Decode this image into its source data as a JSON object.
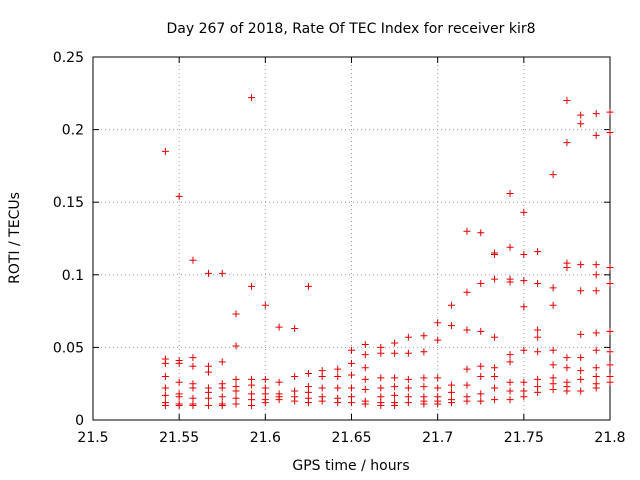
{
  "chart_data": {
    "type": "scatter",
    "title": "Day 267 of 2018, Rate Of TEC Index for receiver kir8",
    "xlabel": "GPS time / hours",
    "ylabel": "ROTI / TECUs",
    "xlim": [
      21.5,
      21.8
    ],
    "ylim": [
      0,
      0.25
    ],
    "xticks": [
      "21.5",
      "21.55",
      "21.6",
      "21.65",
      "21.7",
      "21.75",
      "21.8"
    ],
    "yticks": [
      "0",
      "0.05",
      "0.1",
      "0.15",
      "0.2",
      "0.25"
    ],
    "grid": true,
    "marker": "+",
    "color": "#e00000",
    "series": [
      {
        "name": "ROTI",
        "points": [
          [
            21.542,
            0.185
          ],
          [
            21.542,
            0.042
          ],
          [
            21.542,
            0.039
          ],
          [
            21.542,
            0.03
          ],
          [
            21.542,
            0.022
          ],
          [
            21.542,
            0.017
          ],
          [
            21.542,
            0.012
          ],
          [
            21.542,
            0.01
          ],
          [
            21.55,
            0.154
          ],
          [
            21.55,
            0.041
          ],
          [
            21.55,
            0.039
          ],
          [
            21.55,
            0.026
          ],
          [
            21.55,
            0.018
          ],
          [
            21.55,
            0.016
          ],
          [
            21.55,
            0.011
          ],
          [
            21.55,
            0.01
          ],
          [
            21.558,
            0.11
          ],
          [
            21.558,
            0.043
          ],
          [
            21.558,
            0.037
          ],
          [
            21.558,
            0.025
          ],
          [
            21.558,
            0.022
          ],
          [
            21.558,
            0.015
          ],
          [
            21.558,
            0.011
          ],
          [
            21.558,
            0.01
          ],
          [
            21.567,
            0.101
          ],
          [
            21.567,
            0.037
          ],
          [
            21.567,
            0.033
          ],
          [
            21.567,
            0.022
          ],
          [
            21.567,
            0.019
          ],
          [
            21.567,
            0.015
          ],
          [
            21.567,
            0.01
          ],
          [
            21.575,
            0.101
          ],
          [
            21.575,
            0.04
          ],
          [
            21.575,
            0.025
          ],
          [
            21.575,
            0.022
          ],
          [
            21.575,
            0.016
          ],
          [
            21.575,
            0.011
          ],
          [
            21.575,
            0.01
          ],
          [
            21.583,
            0.073
          ],
          [
            21.583,
            0.051
          ],
          [
            21.583,
            0.028
          ],
          [
            21.583,
            0.023
          ],
          [
            21.583,
            0.02
          ],
          [
            21.583,
            0.015
          ],
          [
            21.583,
            0.011
          ],
          [
            21.592,
            0.222
          ],
          [
            21.592,
            0.092
          ],
          [
            21.592,
            0.028
          ],
          [
            21.592,
            0.024
          ],
          [
            21.592,
            0.018
          ],
          [
            21.592,
            0.014
          ],
          [
            21.592,
            0.01
          ],
          [
            21.6,
            0.079
          ],
          [
            21.6,
            0.028
          ],
          [
            21.6,
            0.022
          ],
          [
            21.6,
            0.018
          ],
          [
            21.6,
            0.014
          ],
          [
            21.6,
            0.012
          ],
          [
            21.608,
            0.064
          ],
          [
            21.608,
            0.026
          ],
          [
            21.608,
            0.018
          ],
          [
            21.608,
            0.016
          ],
          [
            21.608,
            0.014
          ],
          [
            21.617,
            0.063
          ],
          [
            21.617,
            0.03
          ],
          [
            21.617,
            0.02
          ],
          [
            21.617,
            0.016
          ],
          [
            21.617,
            0.013
          ],
          [
            21.625,
            0.092
          ],
          [
            21.625,
            0.032
          ],
          [
            21.625,
            0.023
          ],
          [
            21.625,
            0.019
          ],
          [
            21.625,
            0.015
          ],
          [
            21.625,
            0.012
          ],
          [
            21.633,
            0.034
          ],
          [
            21.633,
            0.03
          ],
          [
            21.633,
            0.022
          ],
          [
            21.633,
            0.016
          ],
          [
            21.633,
            0.013
          ],
          [
            21.642,
            0.035
          ],
          [
            21.642,
            0.03
          ],
          [
            21.642,
            0.022
          ],
          [
            21.642,
            0.015
          ],
          [
            21.642,
            0.012
          ],
          [
            21.65,
            0.048
          ],
          [
            21.65,
            0.039
          ],
          [
            21.65,
            0.031
          ],
          [
            21.65,
            0.022
          ],
          [
            21.65,
            0.016
          ],
          [
            21.65,
            0.012
          ],
          [
            21.658,
            0.052
          ],
          [
            21.658,
            0.045
          ],
          [
            21.658,
            0.036
          ],
          [
            21.658,
            0.028
          ],
          [
            21.658,
            0.021
          ],
          [
            21.658,
            0.013
          ],
          [
            21.658,
            0.011
          ],
          [
            21.667,
            0.05
          ],
          [
            21.667,
            0.046
          ],
          [
            21.667,
            0.029
          ],
          [
            21.667,
            0.022
          ],
          [
            21.667,
            0.016
          ],
          [
            21.667,
            0.012
          ],
          [
            21.667,
            0.01
          ],
          [
            21.675,
            0.053
          ],
          [
            21.675,
            0.046
          ],
          [
            21.675,
            0.029
          ],
          [
            21.675,
            0.023
          ],
          [
            21.675,
            0.017
          ],
          [
            21.675,
            0.012
          ],
          [
            21.675,
            0.01
          ],
          [
            21.683,
            0.057
          ],
          [
            21.683,
            0.046
          ],
          [
            21.683,
            0.028
          ],
          [
            21.683,
            0.022
          ],
          [
            21.683,
            0.016
          ],
          [
            21.683,
            0.012
          ],
          [
            21.692,
            0.058
          ],
          [
            21.692,
            0.047
          ],
          [
            21.692,
            0.029
          ],
          [
            21.692,
            0.023
          ],
          [
            21.692,
            0.016
          ],
          [
            21.692,
            0.013
          ],
          [
            21.692,
            0.011
          ],
          [
            21.7,
            0.067
          ],
          [
            21.7,
            0.055
          ],
          [
            21.7,
            0.029
          ],
          [
            21.7,
            0.022
          ],
          [
            21.7,
            0.016
          ],
          [
            21.7,
            0.013
          ],
          [
            21.7,
            0.011
          ],
          [
            21.708,
            0.079
          ],
          [
            21.708,
            0.065
          ],
          [
            21.708,
            0.024
          ],
          [
            21.708,
            0.019
          ],
          [
            21.708,
            0.014
          ],
          [
            21.708,
            0.012
          ],
          [
            21.717,
            0.13
          ],
          [
            21.717,
            0.088
          ],
          [
            21.717,
            0.062
          ],
          [
            21.717,
            0.035
          ],
          [
            21.717,
            0.024
          ],
          [
            21.717,
            0.016
          ],
          [
            21.717,
            0.013
          ],
          [
            21.725,
            0.129
          ],
          [
            21.725,
            0.094
          ],
          [
            21.725,
            0.061
          ],
          [
            21.725,
            0.037
          ],
          [
            21.725,
            0.03
          ],
          [
            21.725,
            0.018
          ],
          [
            21.725,
            0.013
          ],
          [
            21.733,
            0.115
          ],
          [
            21.733,
            0.114
          ],
          [
            21.733,
            0.097
          ],
          [
            21.733,
            0.057
          ],
          [
            21.733,
            0.036
          ],
          [
            21.733,
            0.03
          ],
          [
            21.733,
            0.022
          ],
          [
            21.733,
            0.014
          ],
          [
            21.742,
            0.156
          ],
          [
            21.742,
            0.119
          ],
          [
            21.742,
            0.097
          ],
          [
            21.742,
            0.095
          ],
          [
            21.742,
            0.045
          ],
          [
            21.742,
            0.04
          ],
          [
            21.742,
            0.026
          ],
          [
            21.742,
            0.02
          ],
          [
            21.742,
            0.014
          ],
          [
            21.75,
            0.143
          ],
          [
            21.75,
            0.114
          ],
          [
            21.75,
            0.096
          ],
          [
            21.75,
            0.078
          ],
          [
            21.75,
            0.048
          ],
          [
            21.75,
            0.026
          ],
          [
            21.75,
            0.02
          ],
          [
            21.75,
            0.016
          ],
          [
            21.758,
            0.116
          ],
          [
            21.758,
            0.094
          ],
          [
            21.758,
            0.062
          ],
          [
            21.758,
            0.057
          ],
          [
            21.758,
            0.047
          ],
          [
            21.758,
            0.028
          ],
          [
            21.758,
            0.023
          ],
          [
            21.758,
            0.019
          ],
          [
            21.767,
            0.169
          ],
          [
            21.767,
            0.091
          ],
          [
            21.767,
            0.079
          ],
          [
            21.767,
            0.048
          ],
          [
            21.767,
            0.038
          ],
          [
            21.767,
            0.029
          ],
          [
            21.767,
            0.025
          ],
          [
            21.767,
            0.021
          ],
          [
            21.775,
            0.22
          ],
          [
            21.775,
            0.191
          ],
          [
            21.775,
            0.108
          ],
          [
            21.775,
            0.105
          ],
          [
            21.775,
            0.043
          ],
          [
            21.775,
            0.036
          ],
          [
            21.775,
            0.026
          ],
          [
            21.775,
            0.023
          ],
          [
            21.775,
            0.02
          ],
          [
            21.783,
            0.21
          ],
          [
            21.783,
            0.204
          ],
          [
            21.783,
            0.107
          ],
          [
            21.783,
            0.089
          ],
          [
            21.783,
            0.059
          ],
          [
            21.783,
            0.043
          ],
          [
            21.783,
            0.034
          ],
          [
            21.783,
            0.028
          ],
          [
            21.783,
            0.02
          ],
          [
            21.792,
            0.211
          ],
          [
            21.792,
            0.196
          ],
          [
            21.792,
            0.107
          ],
          [
            21.792,
            0.1
          ],
          [
            21.792,
            0.089
          ],
          [
            21.792,
            0.06
          ],
          [
            21.792,
            0.048
          ],
          [
            21.792,
            0.036
          ],
          [
            21.792,
            0.03
          ],
          [
            21.792,
            0.025
          ],
          [
            21.792,
            0.022
          ],
          [
            21.8,
            0.212
          ],
          [
            21.8,
            0.198
          ],
          [
            21.8,
            0.105
          ],
          [
            21.8,
            0.094
          ],
          [
            21.8,
            0.061
          ],
          [
            21.8,
            0.047
          ],
          [
            21.8,
            0.038
          ],
          [
            21.8,
            0.03
          ],
          [
            21.8,
            0.026
          ]
        ]
      }
    ]
  }
}
